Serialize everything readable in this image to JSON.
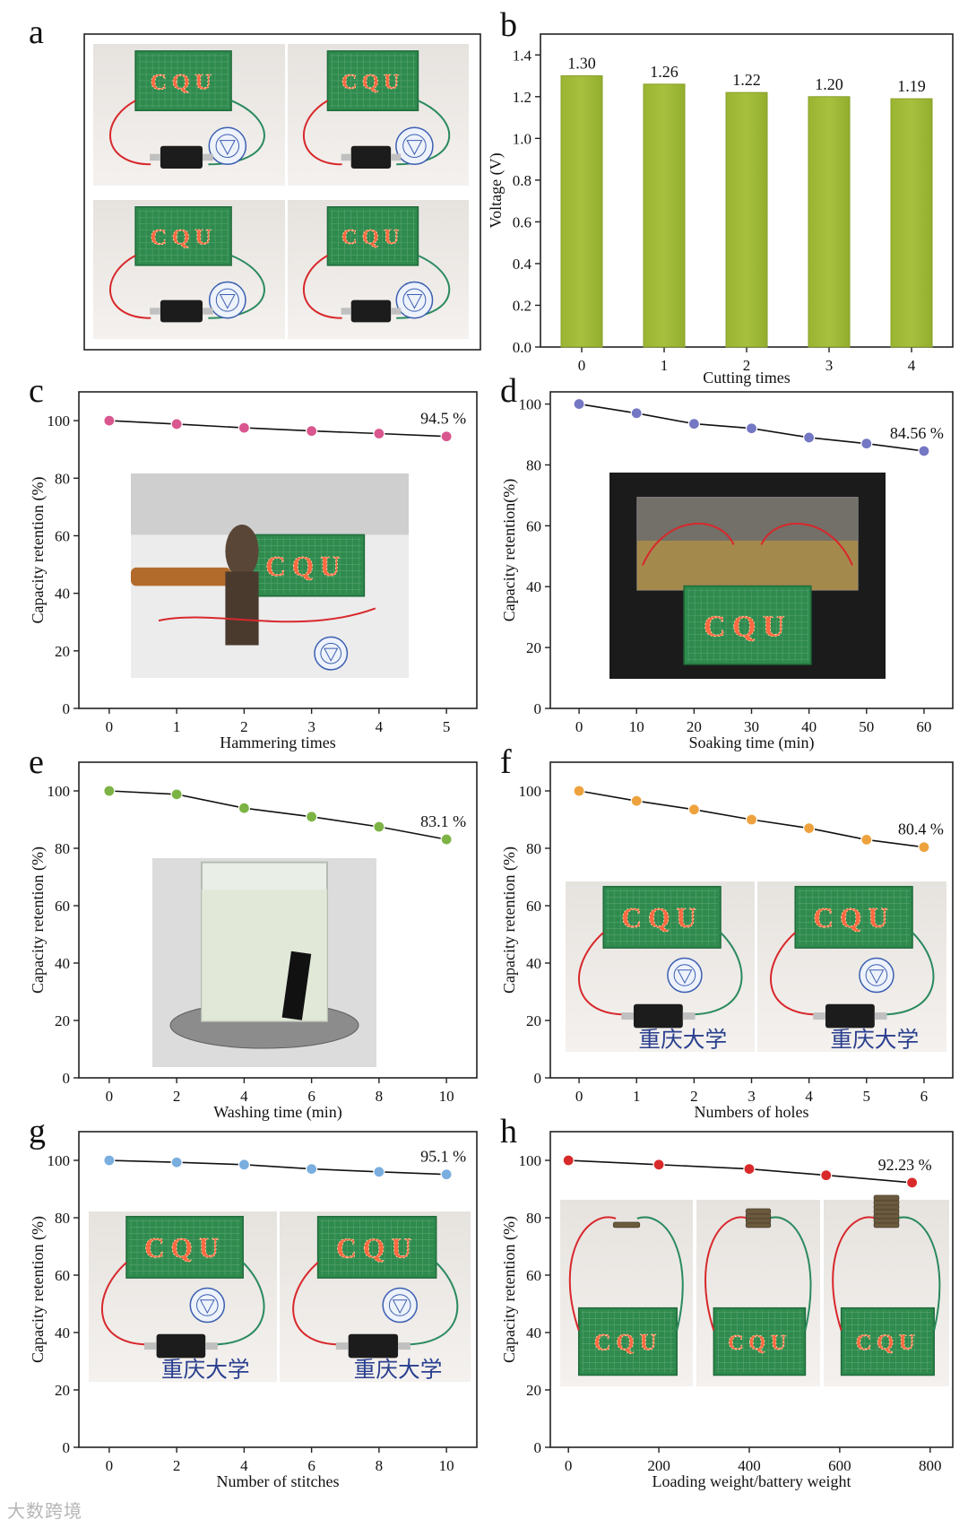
{
  "watermark": "大数跨境",
  "panel_a": {
    "letter": "a",
    "photos": [
      {
        "sign": "CQU"
      },
      {
        "sign": "CQU"
      },
      {
        "sign": "CQU"
      },
      {
        "sign": "CQU"
      }
    ]
  },
  "chart_data": [
    {
      "panel": "b",
      "type": "bar",
      "categories": [
        "0",
        "1",
        "2",
        "3",
        "4"
      ],
      "values": [
        1.3,
        1.26,
        1.22,
        1.2,
        1.19
      ],
      "data_labels": [
        "1.30",
        "1.26",
        "1.22",
        "1.20",
        "1.19"
      ],
      "xlabel": "Cutting times",
      "ylabel": "Voltage (V)",
      "ylim": [
        0,
        1.5
      ],
      "yticks": [
        "0.0",
        "0.2",
        "0.4",
        "0.6",
        "0.8",
        "1.0",
        "1.2",
        "1.4"
      ],
      "bar_color": "#9bb533"
    },
    {
      "panel": "c",
      "type": "line",
      "x": [
        0,
        1,
        2,
        3,
        4,
        5
      ],
      "y": [
        100,
        98.8,
        97.5,
        96.4,
        95.5,
        94.5
      ],
      "xticks": [
        "0",
        "1",
        "2",
        "3",
        "4",
        "5"
      ],
      "xlim": [
        -0.45,
        5.45
      ],
      "yticks": [
        "0",
        "20",
        "40",
        "60",
        "80",
        "100"
      ],
      "ylim": [
        0,
        110
      ],
      "xlabel": "Hammering times",
      "ylabel": "Capacity retention (%)",
      "annotation": "94.5 %",
      "marker_color": "#d9568e",
      "inset": {
        "sign": "CQU",
        "kind": "hammer"
      }
    },
    {
      "panel": "d",
      "type": "line",
      "x": [
        0,
        10,
        20,
        30,
        40,
        50,
        60
      ],
      "y": [
        100,
        97,
        93.5,
        92,
        89,
        87,
        84.56
      ],
      "xticks": [
        "0",
        "10",
        "20",
        "30",
        "40",
        "50",
        "60"
      ],
      "xlim": [
        -5,
        65
      ],
      "yticks": [
        "0",
        "20",
        "40",
        "60",
        "80",
        "100"
      ],
      "ylim": [
        0,
        104
      ],
      "xlabel": "Soaking time (min)",
      "ylabel": "Capacity retention(%)",
      "annotation": "84.56 %",
      "marker_color": "#7477c4",
      "inset": {
        "sign": "CQU",
        "kind": "tank"
      }
    },
    {
      "panel": "e",
      "type": "line",
      "x": [
        0,
        2,
        4,
        6,
        8,
        10
      ],
      "y": [
        100,
        98.8,
        94,
        91,
        87.5,
        83.1
      ],
      "xticks": [
        "0",
        "2",
        "4",
        "6",
        "8",
        "10"
      ],
      "xlim": [
        -0.9,
        10.9
      ],
      "yticks": [
        "0",
        "20",
        "40",
        "60",
        "80",
        "100"
      ],
      "ylim": [
        0,
        110
      ],
      "xlabel": "Washing time (min)",
      "ylabel": "Capacity retention (%)",
      "annotation": "83.1 %",
      "marker_color": "#7cb344",
      "inset": {
        "kind": "beaker"
      }
    },
    {
      "panel": "f",
      "type": "line",
      "x": [
        0,
        1,
        2,
        3,
        4,
        5,
        6
      ],
      "y": [
        100,
        96.5,
        93.5,
        90,
        87,
        83,
        80.4
      ],
      "xticks": [
        "0",
        "1",
        "2",
        "3",
        "4",
        "5",
        "6"
      ],
      "xlim": [
        -0.5,
        6.5
      ],
      "yticks": [
        "0",
        "20",
        "40",
        "60",
        "80",
        "100"
      ],
      "ylim": [
        0,
        110
      ],
      "xlabel": "Numbers of holes",
      "ylabel": "Capacity retention (%)",
      "annotation": "80.4 %",
      "marker_color": "#eea23e",
      "inset": {
        "sign": "CQU",
        "kind": "circuit2",
        "caption": "重庆大学"
      }
    },
    {
      "panel": "g",
      "type": "line",
      "x": [
        0,
        2,
        4,
        6,
        8,
        10
      ],
      "y": [
        100,
        99.3,
        98.5,
        97,
        96,
        95.1
      ],
      "xticks": [
        "0",
        "2",
        "4",
        "6",
        "8",
        "10"
      ],
      "xlim": [
        -0.9,
        10.9
      ],
      "yticks": [
        "0",
        "20",
        "40",
        "60",
        "80",
        "100"
      ],
      "ylim": [
        0,
        110
      ],
      "xlabel": "Number of stitches",
      "ylabel": "Capacity retention (%)",
      "annotation": "95.1 %",
      "marker_color": "#79aedf",
      "inset": {
        "sign": "CQU",
        "kind": "circuit2",
        "caption": "重庆大学"
      }
    },
    {
      "panel": "h",
      "type": "line",
      "x": [
        0,
        200,
        400,
        570,
        760
      ],
      "y": [
        100,
        98.5,
        97,
        94.8,
        92.23
      ],
      "xticks": [
        "0",
        "200",
        "400",
        "600",
        "800"
      ],
      "xlim": [
        -40,
        850
      ],
      "yticks": [
        "0",
        "20",
        "40",
        "60",
        "80",
        "100"
      ],
      "ylim": [
        0,
        110
      ],
      "xlabel": "Loading weight/battery weight",
      "ylabel": "Capacity retention (%)",
      "annotation": "92.23 %",
      "marker_color": "#d82a2a",
      "inset": {
        "sign": "CQU",
        "kind": "weights"
      }
    }
  ]
}
